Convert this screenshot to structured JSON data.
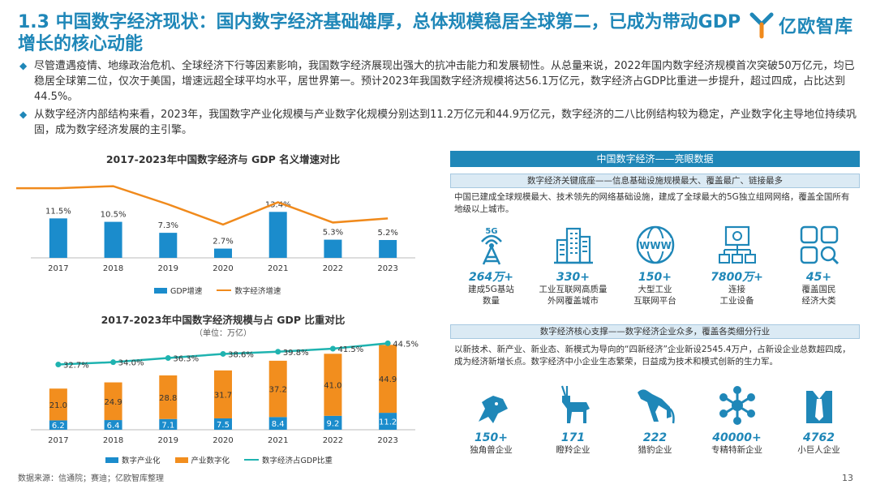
{
  "header": {
    "title": "1.3 中国数字经济现状：国内数字经济基础雄厚，总体规模稳居全球第二，已成为带动GDP增长的核心动能",
    "logo_text": "亿欧智库"
  },
  "bullets": [
    "尽管遭遇疫情、地缘政治危机、全球经济下行等因素影响，我国数字经济展现出强大的抗冲击能力和发展韧性。从总量来说，2022年国内数字经济规模首次突破50万亿元，均已稳居全球第二位，仅次于美国，增速远超全球平均水平，居世界第一。预计2023年我国数字经济规模将达56.1万亿元，数字经济占GDP比重进一步提升，超过四成，占比达到44.5%。",
    "从数字经济内部结构来看，2023年，我国数字产业化规模与产业数字化规模分别达到11.2万亿元和44.9万亿元，数字经济的二八比例结构较为稳定，产业数字化主导地位持续巩固，成为数字经济发展的主引擎。"
  ],
  "colors": {
    "accent": "#1f87b8",
    "bar_blue": "#1b8ccc",
    "line_orange": "#f08a1c",
    "bar_orange": "#f28e1e",
    "teal": "#1fb3b0"
  },
  "chart_data": [
    {
      "type": "bar",
      "title": "2017-2023年中国数字经济与 GDP 名义增速对比",
      "categories": [
        "2017",
        "2018",
        "2019",
        "2020",
        "2021",
        "2022",
        "2023"
      ],
      "series": [
        {
          "name": "GDP增速",
          "type": "bar",
          "values": [
            11.5,
            10.5,
            7.3,
            2.7,
            13.4,
            5.3,
            5.2
          ],
          "labels": [
            "11.5%",
            "10.5%",
            "7.3%",
            "2.7%",
            "13.4%",
            "5.3%",
            "5.2%"
          ]
        },
        {
          "name": "数字经济增速",
          "type": "line",
          "values": [
            20.3,
            20.9,
            15.6,
            9.7,
            16.2,
            10.3,
            11.5
          ]
        }
      ],
      "ylim": [
        0,
        26
      ],
      "legend": "bottom"
    },
    {
      "type": "bar",
      "title": "2017-2023年中国数字经济规模与占 GDP 比重对比",
      "unit": "（单位：万亿）",
      "categories": [
        "2017",
        "2018",
        "2019",
        "2020",
        "2021",
        "2022",
        "2023"
      ],
      "series": [
        {
          "name": "数字产业化",
          "type": "bar",
          "stack": "a",
          "values": [
            6.2,
            6.4,
            7.1,
            7.5,
            8.4,
            9.2,
            11.2
          ]
        },
        {
          "name": "产业数字化",
          "type": "bar",
          "stack": "a",
          "values": [
            21.0,
            24.9,
            28.8,
            31.7,
            37.2,
            41.0,
            44.9
          ]
        },
        {
          "name": "数字经济占GDP比重",
          "type": "line",
          "values": [
            32.7,
            34.0,
            36.3,
            38.6,
            39.8,
            41.5,
            44.5
          ],
          "labels": [
            "32.7%",
            "34.0%",
            "36.3%",
            "38.6%",
            "39.8%",
            "41.5%",
            "44.5%"
          ]
        }
      ],
      "ylim": [
        0,
        60
      ],
      "legend": "bottom"
    }
  ],
  "panel": {
    "header": "中国数字经济——亮眼数据",
    "section1": {
      "title": "数字经济关键底座——信息基础设施规模最大、覆盖最广、链接最多",
      "text": "中国已建成全球规模最大、技术领先的网络基础设施，建成了全球最大的5G独立组网网络，覆盖全国所有地级以上城市。",
      "stats": [
        {
          "icon": "5g-tower-icon",
          "icon_text": "5G",
          "value": "264万+",
          "label1": "建成5G基站",
          "label2": "数量"
        },
        {
          "icon": "city-buildings-icon",
          "value": "330+",
          "label1": "工业互联网高质量",
          "label2": "外网覆盖城市"
        },
        {
          "icon": "www-globe-icon",
          "icon_text": "WWW",
          "value": "150+",
          "label1": "大型工业",
          "label2": "互联网平台"
        },
        {
          "icon": "connected-devices-icon",
          "value": "7800万+",
          "label1": "连接",
          "label2": "工业设备"
        },
        {
          "icon": "category-grid-icon",
          "value": "45+",
          "label1": "覆盖国民",
          "label2": "经济大类"
        }
      ]
    },
    "section2": {
      "title": "数字经济核心支撑——数字经济企业众多，覆盖各类细分行业",
      "text": "以新技术、新产业、新业态、新模式为导向的“四新经济”企业新设2545.4万户，占新设企业总数超四成，成为经济新增长点。数字经济中小企业生态繁荣，日益成为技术和模式创新的生力军。",
      "stats": [
        {
          "icon": "unicorn-icon",
          "value": "150+",
          "label1": "独角兽企业"
        },
        {
          "icon": "gazelle-icon",
          "value": "171",
          "label1": "瞪羚企业"
        },
        {
          "icon": "leopard-icon",
          "value": "222",
          "label1": "猎豹企业"
        },
        {
          "icon": "molecule-icon",
          "value": "40000+",
          "label1": "专精特新企业"
        },
        {
          "icon": "giant-tie-icon",
          "value": "4762",
          "label1": "小巨人企业"
        }
      ]
    }
  },
  "footer": {
    "source": "数据来源：信通院；赛迪；亿欧智库整理",
    "page": "13"
  }
}
